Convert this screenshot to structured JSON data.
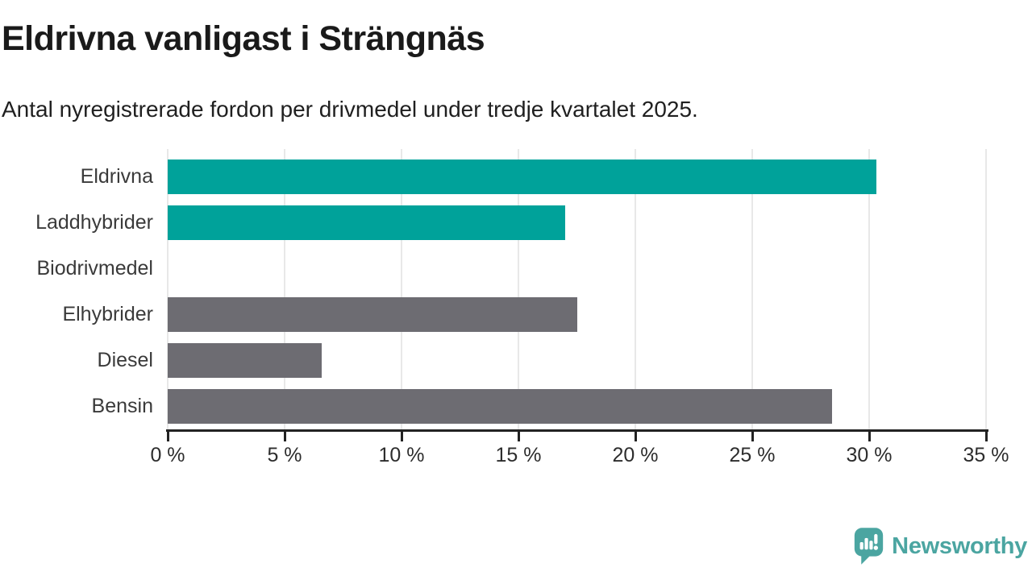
{
  "header": {
    "title": "Eldrivna vanligast i Strängnäs",
    "subtitle": "Antal nyregistrerade fordon per drivmedel under tredje kvartalet 2025."
  },
  "chart_data": {
    "type": "bar",
    "orientation": "horizontal",
    "title": "Eldrivna vanligast i Strängnäs",
    "subtitle": "Antal nyregistrerade fordon per drivmedel under tredje kvartalet 2025.",
    "categories": [
      "Eldrivna",
      "Laddhybrider",
      "Biodrivmedel",
      "Elhybrider",
      "Diesel",
      "Bensin"
    ],
    "values": [
      30.3,
      17,
      0,
      17.5,
      6.6,
      28.4
    ],
    "unit": "%",
    "bar_colors": [
      "#00a29a",
      "#00a29a",
      "#6d6c72",
      "#6d6c72",
      "#6d6c72",
      "#6d6c72"
    ],
    "xlabel": "",
    "ylabel": "",
    "xlim": [
      0,
      35
    ],
    "x_tick_values": [
      0,
      5,
      10,
      15,
      20,
      25,
      30,
      35
    ],
    "x_tick_labels": [
      "0 %",
      "5 %",
      "10 %",
      "15 %",
      "20 %",
      "25 %",
      "30 %",
      "35 %"
    ],
    "grid": true,
    "legend": "none"
  },
  "colors": {
    "accent_teal": "#00a29a",
    "bar_gray": "#6d6c72",
    "gridline": "#e8e8e8",
    "axis": "#222222",
    "title_text": "#1a1a1a",
    "label_text": "#3a3a3a",
    "brand_teal": "#4ba5a1"
  },
  "footer": {
    "brand": "Newsworthy"
  }
}
